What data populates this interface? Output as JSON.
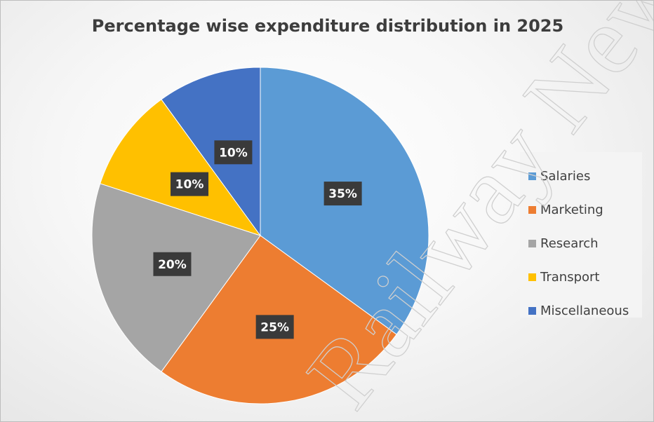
{
  "chart_data": {
    "type": "pie",
    "title": "Percentage wise expenditure distribution in 2025",
    "categories": [
      "Salaries",
      "Marketing",
      "Research",
      "Transport",
      "Miscellaneous"
    ],
    "values": [
      35,
      25,
      20,
      10,
      10
    ],
    "value_labels": [
      "35%",
      "25%",
      "20%",
      "10%",
      "10%"
    ],
    "colors": [
      "#5b9bd5",
      "#ed7d31",
      "#a5a5a5",
      "#ffc000",
      "#4472c4"
    ],
    "start_angle_deg": 0,
    "direction": "clockwise",
    "legend_position": "right",
    "data_label_style": "white bold text on dark box"
  },
  "watermark": {
    "text": "Railway News R",
    "note_color": "#d0d0d0"
  }
}
